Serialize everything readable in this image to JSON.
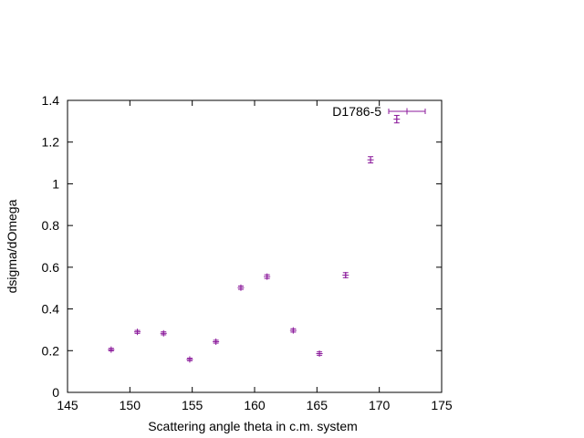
{
  "chart_data": {
    "type": "scatter",
    "title": "",
    "xlabel": "Scattering angle theta in c.m. system",
    "ylabel": "dsigma/dOmega",
    "xlim": [
      145,
      175
    ],
    "ylim": [
      0,
      1.4
    ],
    "xticks": [
      "145",
      "150",
      "155",
      "160",
      "165",
      "170",
      "175"
    ],
    "yticks": [
      "0",
      "0.2",
      "0.4",
      "0.6",
      "0.8",
      "1",
      "1.2",
      "1.4"
    ],
    "grid": false,
    "legend_position": "top-right",
    "series": [
      {
        "name": "D1786-5",
        "color": "#8b1a9b",
        "x": [
          148.5,
          150.6,
          152.7,
          154.8,
          156.9,
          158.9,
          161.0,
          163.1,
          165.2,
          167.3,
          169.3,
          171.4
        ],
        "y": [
          0.205,
          0.29,
          0.283,
          0.158,
          0.243,
          0.502,
          0.555,
          0.297,
          0.186,
          0.562,
          1.115,
          1.31
        ],
        "yerr": [
          0.006,
          0.007,
          0.007,
          0.006,
          0.007,
          0.008,
          0.009,
          0.008,
          0.008,
          0.012,
          0.015,
          0.018
        ]
      }
    ]
  }
}
